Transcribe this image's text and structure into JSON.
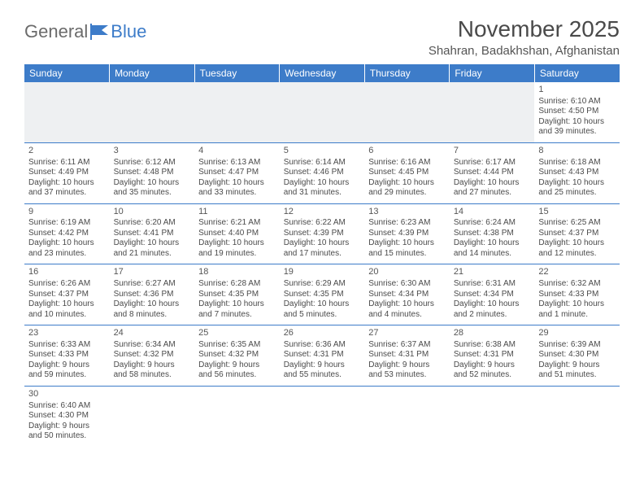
{
  "logo": {
    "text_general": "General",
    "text_blue": "Blue"
  },
  "title": "November 2025",
  "location": "Shahran, Badakhshan, Afghanistan",
  "colors": {
    "header_bg": "#3d7cc9",
    "header_text": "#ffffff",
    "border": "#3d7cc9",
    "empty_bg": "#eef0f2",
    "text": "#4a4a4a"
  },
  "day_headers": [
    "Sunday",
    "Monday",
    "Tuesday",
    "Wednesday",
    "Thursday",
    "Friday",
    "Saturday"
  ],
  "weeks": [
    [
      null,
      null,
      null,
      null,
      null,
      null,
      {
        "n": "1",
        "sunrise": "Sunrise: 6:10 AM",
        "sunset": "Sunset: 4:50 PM",
        "day1": "Daylight: 10 hours",
        "day2": "and 39 minutes."
      }
    ],
    [
      {
        "n": "2",
        "sunrise": "Sunrise: 6:11 AM",
        "sunset": "Sunset: 4:49 PM",
        "day1": "Daylight: 10 hours",
        "day2": "and 37 minutes."
      },
      {
        "n": "3",
        "sunrise": "Sunrise: 6:12 AM",
        "sunset": "Sunset: 4:48 PM",
        "day1": "Daylight: 10 hours",
        "day2": "and 35 minutes."
      },
      {
        "n": "4",
        "sunrise": "Sunrise: 6:13 AM",
        "sunset": "Sunset: 4:47 PM",
        "day1": "Daylight: 10 hours",
        "day2": "and 33 minutes."
      },
      {
        "n": "5",
        "sunrise": "Sunrise: 6:14 AM",
        "sunset": "Sunset: 4:46 PM",
        "day1": "Daylight: 10 hours",
        "day2": "and 31 minutes."
      },
      {
        "n": "6",
        "sunrise": "Sunrise: 6:16 AM",
        "sunset": "Sunset: 4:45 PM",
        "day1": "Daylight: 10 hours",
        "day2": "and 29 minutes."
      },
      {
        "n": "7",
        "sunrise": "Sunrise: 6:17 AM",
        "sunset": "Sunset: 4:44 PM",
        "day1": "Daylight: 10 hours",
        "day2": "and 27 minutes."
      },
      {
        "n": "8",
        "sunrise": "Sunrise: 6:18 AM",
        "sunset": "Sunset: 4:43 PM",
        "day1": "Daylight: 10 hours",
        "day2": "and 25 minutes."
      }
    ],
    [
      {
        "n": "9",
        "sunrise": "Sunrise: 6:19 AM",
        "sunset": "Sunset: 4:42 PM",
        "day1": "Daylight: 10 hours",
        "day2": "and 23 minutes."
      },
      {
        "n": "10",
        "sunrise": "Sunrise: 6:20 AM",
        "sunset": "Sunset: 4:41 PM",
        "day1": "Daylight: 10 hours",
        "day2": "and 21 minutes."
      },
      {
        "n": "11",
        "sunrise": "Sunrise: 6:21 AM",
        "sunset": "Sunset: 4:40 PM",
        "day1": "Daylight: 10 hours",
        "day2": "and 19 minutes."
      },
      {
        "n": "12",
        "sunrise": "Sunrise: 6:22 AM",
        "sunset": "Sunset: 4:39 PM",
        "day1": "Daylight: 10 hours",
        "day2": "and 17 minutes."
      },
      {
        "n": "13",
        "sunrise": "Sunrise: 6:23 AM",
        "sunset": "Sunset: 4:39 PM",
        "day1": "Daylight: 10 hours",
        "day2": "and 15 minutes."
      },
      {
        "n": "14",
        "sunrise": "Sunrise: 6:24 AM",
        "sunset": "Sunset: 4:38 PM",
        "day1": "Daylight: 10 hours",
        "day2": "and 14 minutes."
      },
      {
        "n": "15",
        "sunrise": "Sunrise: 6:25 AM",
        "sunset": "Sunset: 4:37 PM",
        "day1": "Daylight: 10 hours",
        "day2": "and 12 minutes."
      }
    ],
    [
      {
        "n": "16",
        "sunrise": "Sunrise: 6:26 AM",
        "sunset": "Sunset: 4:37 PM",
        "day1": "Daylight: 10 hours",
        "day2": "and 10 minutes."
      },
      {
        "n": "17",
        "sunrise": "Sunrise: 6:27 AM",
        "sunset": "Sunset: 4:36 PM",
        "day1": "Daylight: 10 hours",
        "day2": "and 8 minutes."
      },
      {
        "n": "18",
        "sunrise": "Sunrise: 6:28 AM",
        "sunset": "Sunset: 4:35 PM",
        "day1": "Daylight: 10 hours",
        "day2": "and 7 minutes."
      },
      {
        "n": "19",
        "sunrise": "Sunrise: 6:29 AM",
        "sunset": "Sunset: 4:35 PM",
        "day1": "Daylight: 10 hours",
        "day2": "and 5 minutes."
      },
      {
        "n": "20",
        "sunrise": "Sunrise: 6:30 AM",
        "sunset": "Sunset: 4:34 PM",
        "day1": "Daylight: 10 hours",
        "day2": "and 4 minutes."
      },
      {
        "n": "21",
        "sunrise": "Sunrise: 6:31 AM",
        "sunset": "Sunset: 4:34 PM",
        "day1": "Daylight: 10 hours",
        "day2": "and 2 minutes."
      },
      {
        "n": "22",
        "sunrise": "Sunrise: 6:32 AM",
        "sunset": "Sunset: 4:33 PM",
        "day1": "Daylight: 10 hours",
        "day2": "and 1 minute."
      }
    ],
    [
      {
        "n": "23",
        "sunrise": "Sunrise: 6:33 AM",
        "sunset": "Sunset: 4:33 PM",
        "day1": "Daylight: 9 hours",
        "day2": "and 59 minutes."
      },
      {
        "n": "24",
        "sunrise": "Sunrise: 6:34 AM",
        "sunset": "Sunset: 4:32 PM",
        "day1": "Daylight: 9 hours",
        "day2": "and 58 minutes."
      },
      {
        "n": "25",
        "sunrise": "Sunrise: 6:35 AM",
        "sunset": "Sunset: 4:32 PM",
        "day1": "Daylight: 9 hours",
        "day2": "and 56 minutes."
      },
      {
        "n": "26",
        "sunrise": "Sunrise: 6:36 AM",
        "sunset": "Sunset: 4:31 PM",
        "day1": "Daylight: 9 hours",
        "day2": "and 55 minutes."
      },
      {
        "n": "27",
        "sunrise": "Sunrise: 6:37 AM",
        "sunset": "Sunset: 4:31 PM",
        "day1": "Daylight: 9 hours",
        "day2": "and 53 minutes."
      },
      {
        "n": "28",
        "sunrise": "Sunrise: 6:38 AM",
        "sunset": "Sunset: 4:31 PM",
        "day1": "Daylight: 9 hours",
        "day2": "and 52 minutes."
      },
      {
        "n": "29",
        "sunrise": "Sunrise: 6:39 AM",
        "sunset": "Sunset: 4:30 PM",
        "day1": "Daylight: 9 hours",
        "day2": "and 51 minutes."
      }
    ],
    [
      {
        "n": "30",
        "sunrise": "Sunrise: 6:40 AM",
        "sunset": "Sunset: 4:30 PM",
        "day1": "Daylight: 9 hours",
        "day2": "and 50 minutes."
      },
      null,
      null,
      null,
      null,
      null,
      null
    ]
  ]
}
